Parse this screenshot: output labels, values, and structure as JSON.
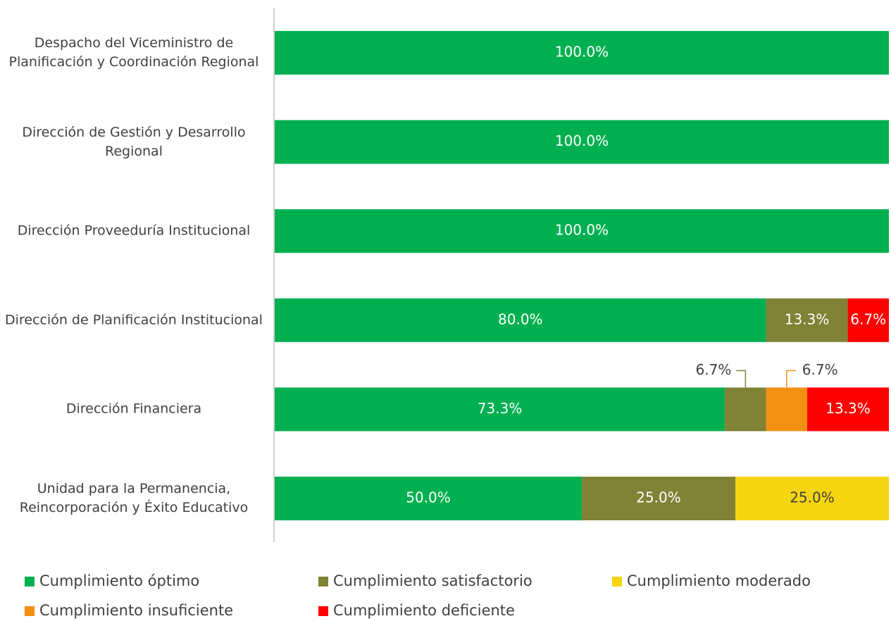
{
  "chart_data": {
    "type": "stacked_bar_horizontal",
    "categories": [
      "Despacho del Viceministro de Planificación y Coordinación Regional",
      "Dirección de Gestión y Desarrollo Regional",
      "Dirección Proveeduría Institucional",
      "Dirección de Planificación Institucional",
      "Dirección Financiera",
      "Unidad para la Permanencia, Reincorporación y Éxito Educativo"
    ],
    "xlim": [
      0,
      100
    ],
    "series": [
      {
        "name": "Cumplimiento óptimo",
        "color": "#00b050",
        "values": [
          100,
          100,
          100,
          80,
          73.3,
          50
        ],
        "value_labels": [
          "100.0%",
          "100.0%",
          "100.0%",
          "80.0%",
          "73.3%",
          "50.0%"
        ]
      },
      {
        "name": "Cumplimiento satisfactorio",
        "color": "#808236",
        "values": [
          null,
          null,
          null,
          13.3,
          6.7,
          25
        ],
        "value_labels": [
          null,
          null,
          null,
          "13.3%",
          "6.7%",
          "25.0%"
        ]
      },
      {
        "name": "Cumplimiento moderado",
        "color": "#f5d50f",
        "values": [
          null,
          null,
          null,
          null,
          null,
          25
        ],
        "value_labels": [
          null,
          null,
          null,
          null,
          null,
          "25.0%"
        ]
      },
      {
        "name": "Cumplimiento insuficiente",
        "color": "#f39012",
        "values": [
          null,
          null,
          null,
          null,
          6.7,
          null
        ],
        "value_labels": [
          null,
          null,
          null,
          null,
          "6.7%",
          null
        ]
      },
      {
        "name": "Cumplimiento deficiente",
        "color": "#ff0000",
        "values": [
          null,
          null,
          null,
          6.7,
          13.3,
          null
        ],
        "value_labels": [
          null,
          null,
          null,
          "6.7%",
          "13.3%",
          null
        ]
      }
    ],
    "legend": "bottom"
  }
}
